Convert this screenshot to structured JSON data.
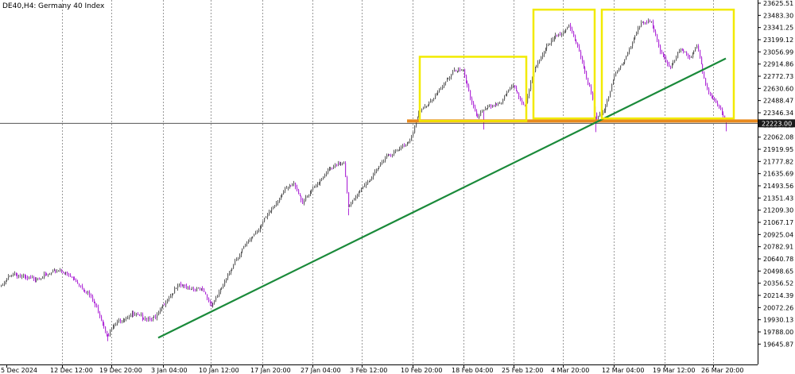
{
  "header": {
    "symbol": "DE40,H4:",
    "name": "Germany 40 Index"
  },
  "chart_data": {
    "type": "candlestick",
    "title": "DE40,H4:  Germany 40 Index",
    "ylim": [
      19574.85,
      23625.51
    ],
    "y_ticks": [
      "23625.51",
      "23483.30",
      "23341.25",
      "23199.12",
      "23056.99",
      "22914.86",
      "22772.73",
      "22630.60",
      "22488.47",
      "22346.34",
      "22204.21",
      "22062.08",
      "21919.95",
      "21777.82",
      "21635.69",
      "21493.56",
      "21351.43",
      "21209.30",
      "21067.17",
      "20925.04",
      "20782.91",
      "20640.78",
      "20498.65",
      "20356.52",
      "20214.39",
      "20072.26",
      "19930.13",
      "19788.00",
      "19645.87"
    ],
    "x_ticks": [
      "5 Dec 2024",
      "12 Dec 12:00",
      "19 Dec 20:00",
      "3 Jan 04:00",
      "10 Jan 12:00",
      "17 Jan 20:00",
      "27 Jan 04:00",
      "3 Feb 12:00",
      "10 Feb 20:00",
      "18 Feb 04:00",
      "25 Feb 12:00",
      "4 Mar 20:00",
      "12 Mar 04:00",
      "19 Mar 12:00",
      "26 Mar 20:00"
    ],
    "current_price": "22223.00",
    "price_line": 22223.0,
    "support_level": 22250.0,
    "grid": true,
    "bull_color": "#606060",
    "bear_color": "#b030d8",
    "price_path": [
      [
        0,
        20300
      ],
      [
        15,
        20480
      ],
      [
        35,
        20400
      ],
      [
        60,
        20450
      ],
      [
        75,
        20520
      ],
      [
        95,
        20380
      ],
      [
        110,
        20250
      ],
      [
        122,
        20050
      ],
      [
        135,
        19760
      ],
      [
        150,
        19930
      ],
      [
        165,
        19990
      ],
      [
        180,
        19960
      ],
      [
        195,
        19940
      ],
      [
        210,
        20180
      ],
      [
        225,
        20330
      ],
      [
        240,
        20300
      ],
      [
        255,
        20270
      ],
      [
        265,
        20100
      ],
      [
        280,
        20320
      ],
      [
        295,
        20620
      ],
      [
        310,
        20820
      ],
      [
        325,
        21000
      ],
      [
        340,
        21200
      ],
      [
        355,
        21420
      ],
      [
        370,
        21520
      ],
      [
        380,
        21300
      ],
      [
        395,
        21470
      ],
      [
        410,
        21660
      ],
      [
        425,
        21740
      ],
      [
        432,
        21780
      ],
      [
        438,
        21230
      ],
      [
        455,
        21480
      ],
      [
        470,
        21620
      ],
      [
        485,
        21850
      ],
      [
        500,
        21900
      ],
      [
        515,
        22030
      ],
      [
        527,
        22350
      ],
      [
        540,
        22480
      ],
      [
        555,
        22630
      ],
      [
        570,
        22850
      ],
      [
        582,
        22830
      ],
      [
        592,
        22490
      ],
      [
        600,
        22300
      ],
      [
        615,
        22420
      ],
      [
        630,
        22470
      ],
      [
        645,
        22680
      ],
      [
        660,
        22400
      ],
      [
        672,
        22880
      ],
      [
        685,
        23080
      ],
      [
        700,
        23250
      ],
      [
        715,
        23350
      ],
      [
        728,
        23080
      ],
      [
        742,
        22600
      ],
      [
        750,
        22260
      ],
      [
        760,
        22400
      ],
      [
        772,
        22750
      ],
      [
        790,
        23070
      ],
      [
        805,
        23380
      ],
      [
        818,
        23440
      ],
      [
        830,
        23050
      ],
      [
        842,
        22880
      ],
      [
        855,
        23080
      ],
      [
        868,
        22990
      ],
      [
        876,
        23140
      ],
      [
        888,
        22620
      ],
      [
        900,
        22480
      ],
      [
        912,
        22250
      ]
    ],
    "wick_spikes": [
      [
        608,
        22150
      ],
      [
        749,
        22120
      ],
      [
        913,
        22130
      ],
      [
        438,
        21150
      ],
      [
        135,
        19680
      ]
    ],
    "annotations": {
      "trendline": {
        "color": "#1a8a3a",
        "from": [
          "3 Jan 04:00",
          19720
        ],
        "to": [
          "28 Mar",
          22980
        ]
      },
      "support_line": {
        "color": "#e88a1e",
        "price": 22250
      },
      "boxes": [
        {
          "color": "#f2ea00",
          "from_x": "10 Feb 20:00",
          "to_x": "25 Feb 12:00",
          "y_range": [
            22250,
            23000
          ]
        },
        {
          "color": "#f2ea00",
          "from_x": "27 Feb",
          "to_x": "10 Mar",
          "y_range": [
            22280,
            23550
          ]
        },
        {
          "color": "#f2ea00",
          "from_x": "11 Mar",
          "to_x": "28 Mar",
          "y_range": [
            22280,
            23550
          ]
        }
      ]
    }
  }
}
